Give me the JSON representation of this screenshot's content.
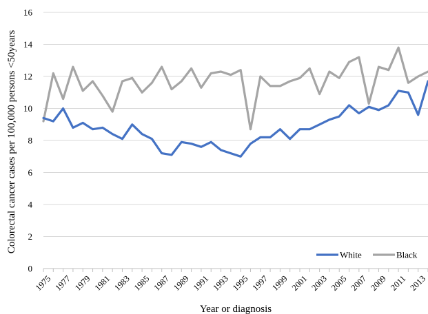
{
  "chart_data": {
    "type": "line",
    "title": "",
    "xlabel": "Year or diagnosis",
    "ylabel": "Colorectal cancer cases per 100,000 persons  <50years",
    "ylim": [
      0,
      16
    ],
    "yticks": [
      0,
      2,
      4,
      6,
      8,
      10,
      12,
      14,
      16
    ],
    "grid": "horizontal",
    "legend_position": "bottom-right",
    "x": [
      1975,
      1976,
      1977,
      1978,
      1979,
      1980,
      1981,
      1982,
      1983,
      1984,
      1985,
      1986,
      1987,
      1988,
      1989,
      1990,
      1991,
      1992,
      1993,
      1994,
      1995,
      1996,
      1997,
      1998,
      1999,
      2000,
      2001,
      2002,
      2003,
      2004,
      2005,
      2006,
      2007,
      2008,
      2009,
      2010,
      2011,
      2012,
      2013,
      2014
    ],
    "xtick_labels": [
      "1975",
      "1977",
      "1979",
      "1981",
      "1983",
      "1985",
      "1987",
      "1989",
      "1991",
      "1993",
      "1995",
      "1997",
      "1999",
      "2001",
      "2003",
      "2005",
      "2007",
      "2009",
      "2011",
      "2013"
    ],
    "series": [
      {
        "name": "White",
        "color": "#4472c4",
        "values": [
          9.4,
          9.2,
          10.0,
          8.8,
          9.1,
          8.7,
          8.8,
          8.4,
          8.1,
          9.0,
          8.4,
          8.1,
          7.2,
          7.1,
          7.9,
          7.8,
          7.6,
          7.9,
          7.4,
          7.2,
          7.0,
          7.8,
          8.2,
          8.2,
          8.7,
          8.1,
          8.7,
          8.7,
          9.0,
          9.3,
          9.5,
          10.2,
          9.7,
          10.1,
          9.9,
          10.2,
          11.1,
          11.0,
          9.6,
          11.7
        ]
      },
      {
        "name": "Black",
        "color": "#a5a5a5",
        "values": [
          9.2,
          12.2,
          10.6,
          12.6,
          11.1,
          11.7,
          10.8,
          9.8,
          11.7,
          11.9,
          11.0,
          11.6,
          12.6,
          11.2,
          11.7,
          12.5,
          11.3,
          12.2,
          12.3,
          12.1,
          12.4,
          8.7,
          12.0,
          11.4,
          11.4,
          11.7,
          11.9,
          12.5,
          10.9,
          12.3,
          11.9,
          12.9,
          13.2,
          10.3,
          12.6,
          12.4,
          13.8,
          11.6,
          12.0,
          12.3
        ]
      }
    ]
  }
}
